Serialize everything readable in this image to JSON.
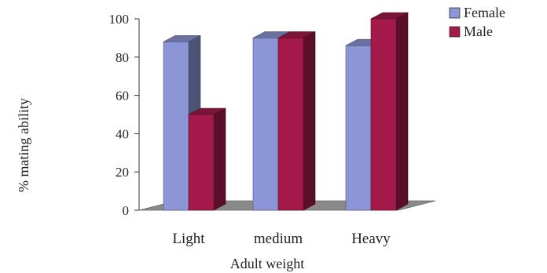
{
  "chart_data": {
    "type": "bar",
    "title": "",
    "xlabel": "Adult weight",
    "ylabel": "% mating ability",
    "categories": [
      "Light",
      "medium",
      "Heavy"
    ],
    "series": [
      {
        "name": "Female",
        "values": [
          88,
          90,
          86
        ]
      },
      {
        "name": "Male",
        "values": [
          50,
          90,
          100
        ]
      }
    ],
    "ylim": [
      0,
      100
    ],
    "yticks": [
      "0",
      "20",
      "40",
      "60",
      "80",
      "100"
    ],
    "grid": false,
    "legend_position": "top-right",
    "colors": {
      "Female": "#8c96d6",
      "Male": "#a31a4a",
      "floor": "#8a8a8a"
    }
  }
}
